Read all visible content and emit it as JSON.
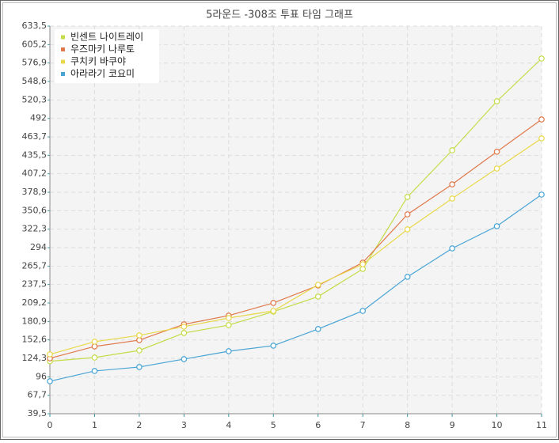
{
  "chart_data": {
    "type": "line",
    "title": "5라운드 -308조 투표 타임 그래프",
    "x": [
      0,
      1,
      2,
      3,
      4,
      5,
      6,
      7,
      8,
      9,
      10,
      11
    ],
    "xlim": [
      0,
      11
    ],
    "xticks": [
      0,
      1,
      2,
      3,
      4,
      5,
      6,
      7,
      8,
      9,
      10,
      11
    ],
    "ylim": [
      39.5,
      633.5
    ],
    "yticks": [
      {
        "value": 39.5,
        "label": "39,5"
      },
      {
        "value": 67.7,
        "label": "67,7"
      },
      96,
      {
        "value": 124.3,
        "label": "124,3"
      },
      {
        "value": 152.6,
        "label": "152,6"
      },
      {
        "value": 180.9,
        "label": "180,9"
      },
      {
        "value": 209.2,
        "label": "209,2"
      },
      {
        "value": 237.5,
        "label": "237,5"
      },
      {
        "value": 265.7,
        "label": "265,7"
      },
      294,
      {
        "value": 322.3,
        "label": "322,3"
      },
      {
        "value": 350.6,
        "label": "350,6"
      },
      {
        "value": 378.9,
        "label": "378,9"
      },
      {
        "value": 407.2,
        "label": "407,2"
      },
      {
        "value": 435.5,
        "label": "435,5"
      },
      {
        "value": 463.7,
        "label": "463,7"
      },
      492,
      {
        "value": 520.3,
        "label": "520,3"
      },
      {
        "value": 548.6,
        "label": "548,6"
      },
      {
        "value": 576.9,
        "label": "576,9"
      },
      {
        "value": 605.2,
        "label": "605,2"
      },
      {
        "value": 633.5,
        "label": "633,5"
      }
    ],
    "grid": true,
    "legend": "top-left",
    "series": [
      {
        "name": "빈센트 나이트레이",
        "color": "#c4dc48",
        "values": [
          120,
          125.6,
          136.5,
          163.2,
          175.3,
          195.9,
          219,
          261.4,
          371.7,
          443.2,
          518.3,
          583.8
        ]
      },
      {
        "name": "우즈마키 나루토",
        "color": "#e0784a",
        "values": [
          124.4,
          142.6,
          152.3,
          176.5,
          189.9,
          209.3,
          235.9,
          271.1,
          345,
          391,
          441,
          490.5
        ]
      },
      {
        "name": "쿠치키 바쿠야",
        "color": "#e8d84a",
        "values": [
          130.5,
          149.9,
          159.6,
          172.9,
          186.2,
          197.1,
          237.1,
          268.6,
          322,
          369.3,
          415.3,
          461.4
        ]
      },
      {
        "name": "아라라기 코요미",
        "color": "#48a4d4",
        "values": [
          89.3,
          105,
          111.1,
          123.2,
          135.3,
          143.8,
          169.3,
          197.1,
          249.3,
          292.9,
          326.9,
          375.3
        ]
      }
    ]
  }
}
